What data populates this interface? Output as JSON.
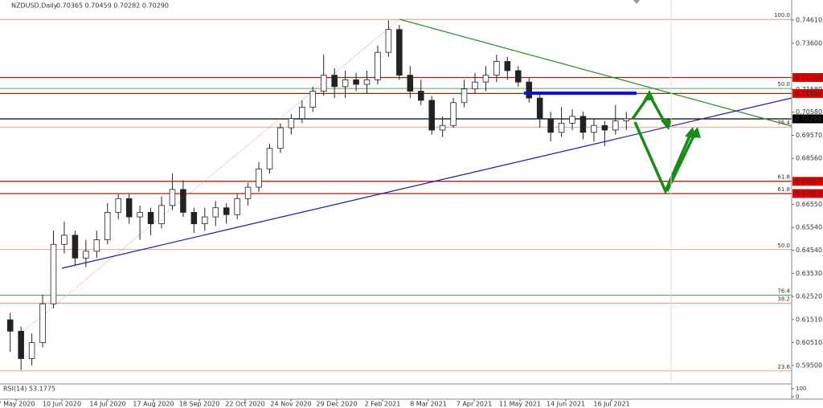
{
  "chart_data": {
    "type": "candlestick",
    "title": "NZDUSD,Daily",
    "ohlc_text": "0.70365 0.70459 0.70282 0.70290",
    "ylim": [
      0.588,
      0.7549
    ],
    "yticks": [
      {
        "value": 0.7461,
        "label": "0.74610"
      },
      {
        "value": 0.736,
        "label": "0.73600"
      },
      {
        "value": 0.7158,
        "label": "0.71580"
      },
      {
        "value": 0.7058,
        "label": "0.70580"
      },
      {
        "value": 0.6957,
        "label": "0.69570"
      },
      {
        "value": 0.6856,
        "label": "0.68560"
      },
      {
        "value": 0.6655,
        "label": "0.66550"
      },
      {
        "value": 0.6554,
        "label": "0.65540"
      },
      {
        "value": 0.6454,
        "label": "0.64540"
      },
      {
        "value": 0.6353,
        "label": "0.63530"
      },
      {
        "value": 0.6252,
        "label": "0.62520"
      },
      {
        "value": 0.6151,
        "label": "0.61510"
      },
      {
        "value": 0.6051,
        "label": "0.60510"
      },
      {
        "value": 0.595,
        "label": "0.59500"
      }
    ],
    "x_labels": [
      "7 May 2020",
      "10 Jun 2020",
      "14 Jul 2020",
      "17 Aug 2020",
      "18 Sep 2020",
      "22 Oct 2020",
      "24 Nov 2020",
      "29 Dec 2020",
      "2 Feb 2021",
      "8 Mar 2021",
      "7 Apr 2021",
      "11 May 2021",
      "14 Jun 2021",
      "16 Jul 2021"
    ],
    "up_color": "#222222",
    "down_color": "#222222",
    "candles": [
      [
        0.615,
        0.618,
        0.601,
        0.61
      ],
      [
        0.61,
        0.612,
        0.593,
        0.598
      ],
      [
        0.598,
        0.609,
        0.595,
        0.605
      ],
      [
        0.605,
        0.626,
        0.603,
        0.622
      ],
      [
        0.622,
        0.654,
        0.62,
        0.648
      ],
      [
        0.648,
        0.658,
        0.644,
        0.652
      ],
      [
        0.652,
        0.654,
        0.639,
        0.642
      ],
      [
        0.642,
        0.65,
        0.638,
        0.645
      ],
      [
        0.645,
        0.654,
        0.642,
        0.65
      ],
      [
        0.65,
        0.666,
        0.648,
        0.662
      ],
      [
        0.662,
        0.67,
        0.659,
        0.668
      ],
      [
        0.668,
        0.67,
        0.657,
        0.66
      ],
      [
        0.66,
        0.665,
        0.65,
        0.662
      ],
      [
        0.662,
        0.664,
        0.652,
        0.657
      ],
      [
        0.657,
        0.669,
        0.655,
        0.665
      ],
      [
        0.665,
        0.679,
        0.663,
        0.672
      ],
      [
        0.672,
        0.676,
        0.66,
        0.662
      ],
      [
        0.662,
        0.664,
        0.653,
        0.657
      ],
      [
        0.657,
        0.664,
        0.654,
        0.66
      ],
      [
        0.66,
        0.667,
        0.656,
        0.664
      ],
      [
        0.664,
        0.666,
        0.657,
        0.661
      ],
      [
        0.661,
        0.67,
        0.659,
        0.668
      ],
      [
        0.668,
        0.675,
        0.665,
        0.673
      ],
      [
        0.673,
        0.684,
        0.671,
        0.681
      ],
      [
        0.681,
        0.692,
        0.679,
        0.69
      ],
      [
        0.69,
        0.701,
        0.688,
        0.699
      ],
      [
        0.699,
        0.705,
        0.696,
        0.703
      ],
      [
        0.703,
        0.711,
        0.701,
        0.708
      ],
      [
        0.708,
        0.717,
        0.706,
        0.715
      ],
      [
        0.715,
        0.731,
        0.713,
        0.722
      ],
      [
        0.722,
        0.725,
        0.712,
        0.717
      ],
      [
        0.717,
        0.724,
        0.712,
        0.72
      ],
      [
        0.72,
        0.723,
        0.715,
        0.718
      ],
      [
        0.718,
        0.724,
        0.714,
        0.72
      ],
      [
        0.72,
        0.735,
        0.718,
        0.732
      ],
      [
        0.732,
        0.746,
        0.73,
        0.742
      ],
      [
        0.742,
        0.744,
        0.72,
        0.722
      ],
      [
        0.722,
        0.726,
        0.712,
        0.715
      ],
      [
        0.715,
        0.72,
        0.709,
        0.711
      ],
      [
        0.711,
        0.713,
        0.696,
        0.698
      ],
      [
        0.698,
        0.704,
        0.695,
        0.7
      ],
      [
        0.7,
        0.712,
        0.699,
        0.71
      ],
      [
        0.71,
        0.72,
        0.708,
        0.716
      ],
      [
        0.716,
        0.723,
        0.714,
        0.719
      ],
      [
        0.719,
        0.726,
        0.715,
        0.722
      ],
      [
        0.722,
        0.731,
        0.719,
        0.728
      ],
      [
        0.728,
        0.73,
        0.72,
        0.724
      ],
      [
        0.724,
        0.726,
        0.717,
        0.719
      ],
      [
        0.719,
        0.721,
        0.71,
        0.712
      ],
      [
        0.712,
        0.714,
        0.699,
        0.703
      ],
      [
        0.703,
        0.706,
        0.693,
        0.697
      ],
      [
        0.697,
        0.708,
        0.695,
        0.701
      ],
      [
        0.701,
        0.707,
        0.698,
        0.704
      ],
      [
        0.704,
        0.706,
        0.694,
        0.697
      ],
      [
        0.697,
        0.703,
        0.693,
        0.7
      ],
      [
        0.7,
        0.702,
        0.691,
        0.698
      ],
      [
        0.698,
        0.709,
        0.696,
        0.702
      ],
      [
        0.702,
        0.706,
        0.698,
        0.7029
      ]
    ],
    "price_levels": [
      {
        "value": 0.721,
        "label": "0.72100",
        "color": "#e00000"
      },
      {
        "value": 0.714,
        "label": "0.71400",
        "color": "#e00000"
      },
      {
        "value": 0.7029,
        "label": "0.70290",
        "color": "#000000"
      },
      {
        "value": 0.67557,
        "label": "0.67557",
        "color": "#e00000"
      },
      {
        "value": 0.67023,
        "label": "0.67023",
        "color": "#e00000"
      }
    ],
    "fib_levels": [
      {
        "label": "100.0",
        "price": 0.7464,
        "color": "#f08060"
      },
      {
        "label": "50.0",
        "price": 0.7162,
        "color": "#2a8a2a"
      },
      {
        "label": "76.4",
        "price": 0.6993,
        "color": "#f08060"
      },
      {
        "label": "61.8",
        "price": 0.6756,
        "color": "#c04020"
      },
      {
        "label": "61.8",
        "price": 0.6702,
        "color": "#c04020"
      },
      {
        "label": "50.0",
        "price": 0.6457,
        "color": "#f08060"
      },
      {
        "label": "76.4",
        "price": 0.6257,
        "color": "#2a8a2a"
      },
      {
        "label": "38.2",
        "price": 0.6222,
        "color": "#f08060"
      },
      {
        "label": "23.6",
        "price": 0.5926,
        "color": "#f08060"
      }
    ],
    "rsi": {
      "label": "RSI(14) 53.1775",
      "ylim": [
        0,
        100
      ],
      "yticks": [
        100,
        0
      ]
    }
  }
}
